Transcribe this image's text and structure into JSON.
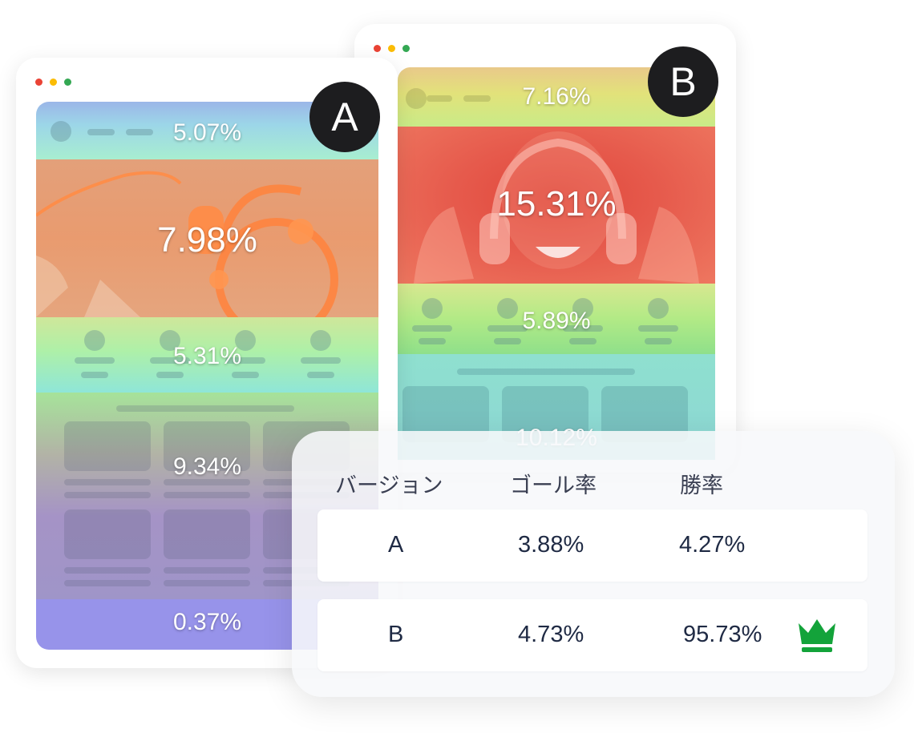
{
  "version_a": {
    "badge": "A",
    "sections": [
      "5.07%",
      "7.98%",
      "5.31%",
      "9.34%",
      "0.37%"
    ]
  },
  "version_b": {
    "badge": "B",
    "sections": [
      "7.16%",
      "15.31%",
      "5.89%",
      "10.12%"
    ]
  },
  "results_table": {
    "headers": {
      "version": "バージョン",
      "goal_rate": "ゴール率",
      "win_rate": "勝率"
    },
    "rows": [
      {
        "version": "A",
        "goal_rate": "3.88%",
        "win_rate": "4.27%"
      },
      {
        "version": "B",
        "goal_rate": "4.73%",
        "win_rate": "95.73%",
        "winner_icon": "crown-icon"
      }
    ]
  },
  "colors": {
    "badge_bg": "#1d1d1f",
    "crown": "#13a33a",
    "heat_red": "#e85a4f",
    "heat_orange": "#f0a070",
    "heat_green": "#a8e07a",
    "heat_cyan": "#8fe0d8",
    "heat_purple": "#9a8fd6"
  }
}
